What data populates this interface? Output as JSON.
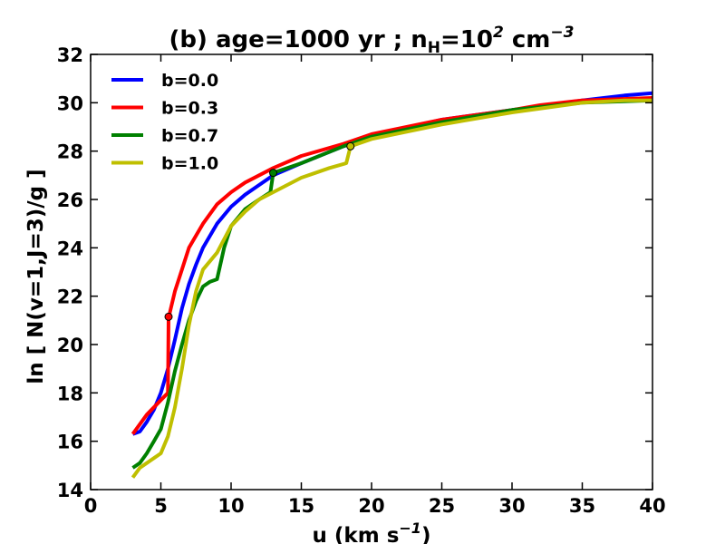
{
  "chart_data": {
    "type": "line",
    "title": "(b) age=1000 yr ; n",
    "title_sub": "H",
    "title_mid": "=10",
    "title_sup": "2",
    "title_unit": " cm",
    "title_unit_sup": "−3",
    "xlabel": "u (km s",
    "xlabel_sup": "−1",
    "xlabel_end": ")",
    "ylabel": "ln [ N(v=1,J=3)/g ]",
    "xlim": [
      0,
      40
    ],
    "ylim": [
      14,
      32
    ],
    "x_ticks": [
      0,
      5,
      10,
      15,
      20,
      25,
      30,
      35,
      40
    ],
    "y_ticks": [
      14,
      16,
      18,
      20,
      22,
      24,
      26,
      28,
      30,
      32
    ],
    "legend_position": "top-left",
    "series": [
      {
        "name": "b=0.0",
        "color": "#0000ff",
        "points": [
          [
            3,
            16.3
          ],
          [
            3.5,
            16.4
          ],
          [
            4,
            16.8
          ],
          [
            4.5,
            17.3
          ],
          [
            5,
            18.0
          ],
          [
            5.5,
            19.0
          ],
          [
            6,
            20.2
          ],
          [
            6.5,
            21.5
          ],
          [
            7,
            22.5
          ],
          [
            7.5,
            23.3
          ],
          [
            8,
            24.0
          ],
          [
            9,
            25.0
          ],
          [
            10,
            25.7
          ],
          [
            11,
            26.2
          ],
          [
            12,
            26.6
          ],
          [
            13,
            27.0
          ],
          [
            15,
            27.5
          ],
          [
            18,
            28.2
          ],
          [
            20,
            28.6
          ],
          [
            25,
            29.3
          ],
          [
            30,
            29.7
          ],
          [
            35,
            30.1
          ],
          [
            38,
            30.3
          ],
          [
            40,
            30.4
          ]
        ]
      },
      {
        "name": "b=0.3",
        "color": "#ff0000",
        "points": [
          [
            3,
            16.3
          ],
          [
            4,
            17.1
          ],
          [
            5,
            17.7
          ],
          [
            5.5,
            18.0
          ],
          [
            5.55,
            21.1
          ],
          [
            6,
            22.2
          ],
          [
            6.5,
            23.1
          ],
          [
            7,
            24.0
          ],
          [
            8,
            25.0
          ],
          [
            9,
            25.8
          ],
          [
            10,
            26.3
          ],
          [
            11,
            26.7
          ],
          [
            12,
            27.0
          ],
          [
            13,
            27.3
          ],
          [
            15,
            27.8
          ],
          [
            18,
            28.3
          ],
          [
            20,
            28.7
          ],
          [
            25,
            29.3
          ],
          [
            30,
            29.7
          ],
          [
            32,
            29.9
          ],
          [
            35,
            30.1
          ],
          [
            40,
            30.2
          ]
        ]
      },
      {
        "name": "b=0.7",
        "color": "#008000",
        "points": [
          [
            3,
            14.9
          ],
          [
            3.5,
            15.1
          ],
          [
            4,
            15.5
          ],
          [
            4.5,
            16.0
          ],
          [
            5,
            16.5
          ],
          [
            5.5,
            17.6
          ],
          [
            6,
            18.9
          ],
          [
            6.5,
            20.0
          ],
          [
            7,
            21.0
          ],
          [
            7.5,
            21.8
          ],
          [
            8,
            22.4
          ],
          [
            8.5,
            22.6
          ],
          [
            9,
            22.7
          ],
          [
            9.5,
            24.0
          ],
          [
            10,
            24.9
          ],
          [
            11,
            25.6
          ],
          [
            12,
            26.0
          ],
          [
            12.8,
            26.3
          ],
          [
            13,
            27.1
          ],
          [
            15,
            27.5
          ],
          [
            18,
            28.2
          ],
          [
            20,
            28.6
          ],
          [
            25,
            29.2
          ],
          [
            30,
            29.7
          ],
          [
            35,
            30.0
          ],
          [
            40,
            30.1
          ]
        ]
      },
      {
        "name": "b=1.0",
        "color": "#bfbf00",
        "points": [
          [
            3,
            14.5
          ],
          [
            3.5,
            14.9
          ],
          [
            4,
            15.1
          ],
          [
            4.5,
            15.3
          ],
          [
            5,
            15.5
          ],
          [
            5.5,
            16.2
          ],
          [
            6,
            17.4
          ],
          [
            6.5,
            19.0
          ],
          [
            7,
            20.8
          ],
          [
            7.5,
            22.2
          ],
          [
            8,
            23.1
          ],
          [
            9,
            23.8
          ],
          [
            10,
            24.9
          ],
          [
            11,
            25.5
          ],
          [
            12,
            26.0
          ],
          [
            13,
            26.3
          ],
          [
            14,
            26.6
          ],
          [
            15,
            26.9
          ],
          [
            16,
            27.1
          ],
          [
            17,
            27.3
          ],
          [
            18.2,
            27.5
          ],
          [
            18.5,
            28.2
          ],
          [
            20,
            28.5
          ],
          [
            25,
            29.1
          ],
          [
            30,
            29.6
          ],
          [
            35,
            30.0
          ],
          [
            38,
            30.1
          ],
          [
            40,
            30.1
          ]
        ]
      }
    ],
    "markers": [
      {
        "series": "b=0.3",
        "x": 5.55,
        "y": 21.15,
        "color": "#ff0000"
      },
      {
        "series": "b=0.7",
        "x": 13.0,
        "y": 27.1,
        "color": "#008000"
      },
      {
        "series": "b=1.0",
        "x": 18.5,
        "y": 28.2,
        "color": "#bfbf00"
      }
    ]
  }
}
